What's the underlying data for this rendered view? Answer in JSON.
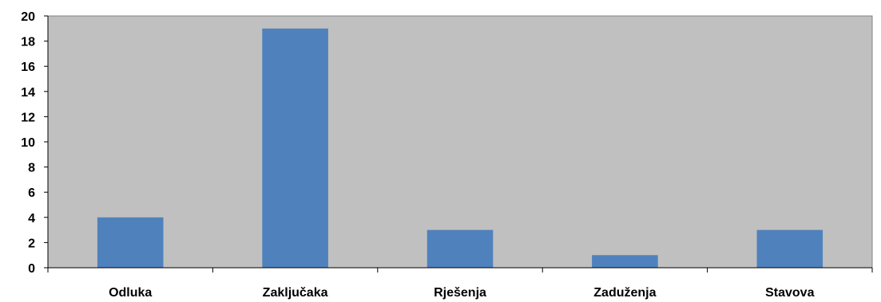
{
  "chart_data": {
    "type": "bar",
    "title": "",
    "xlabel": "",
    "ylabel": "",
    "categories": [
      "Odluka",
      "Zaključaka",
      "Rješenja",
      "Zaduženja",
      "Stavova"
    ],
    "values": [
      4,
      19,
      3,
      1,
      3
    ],
    "ylim": [
      0,
      20
    ],
    "yticks": [
      0,
      2,
      4,
      6,
      8,
      10,
      12,
      14,
      16,
      18,
      20
    ],
    "ytick_labels": [
      "0",
      "2",
      "4",
      "6",
      "8",
      "10",
      "12",
      "14",
      "16",
      "18",
      "20"
    ],
    "grid": false,
    "legend": "none",
    "colors": {
      "bar": "#4f81bd",
      "plot_background": "#c0c0c0",
      "axis": "#000000"
    }
  }
}
